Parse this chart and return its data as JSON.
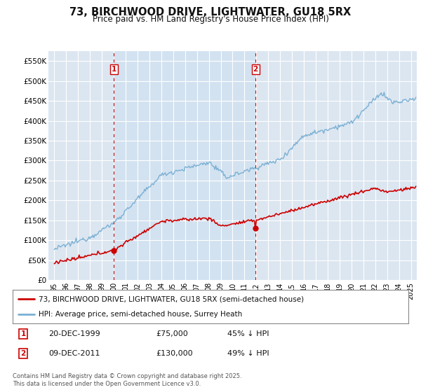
{
  "title": "73, BIRCHWOOD DRIVE, LIGHTWATER, GU18 5RX",
  "subtitle": "Price paid vs. HM Land Registry's House Price Index (HPI)",
  "background_color": "#ffffff",
  "plot_bg_color": "#dce6f1",
  "highlight_color": "#cdd9ea",
  "grid_color": "#ffffff",
  "hpi_color": "#7ab0d4",
  "price_color": "#cc0000",
  "vline_color": "#cc0000",
  "marker1_year": 2000.0,
  "marker1_price": 75000,
  "marker2_year": 2011.92,
  "marker2_price": 130000,
  "legend_label1": "73, BIRCHWOOD DRIVE, LIGHTWATER, GU18 5RX (semi-detached house)",
  "legend_label2": "HPI: Average price, semi-detached house, Surrey Heath",
  "annotation1_label": "1",
  "annotation1_date": "20-DEC-1999",
  "annotation1_price": "£75,000",
  "annotation1_pct": "45% ↓ HPI",
  "annotation2_label": "2",
  "annotation2_date": "09-DEC-2011",
  "annotation2_price": "£130,000",
  "annotation2_pct": "49% ↓ HPI",
  "footnote": "Contains HM Land Registry data © Crown copyright and database right 2025.\nThis data is licensed under the Open Government Licence v3.0.",
  "ylim": [
    0,
    575000
  ],
  "yticks": [
    0,
    50000,
    100000,
    150000,
    200000,
    250000,
    300000,
    350000,
    400000,
    450000,
    500000,
    550000
  ],
  "ytick_labels": [
    "£0",
    "£50K",
    "£100K",
    "£150K",
    "£200K",
    "£250K",
    "£300K",
    "£350K",
    "£400K",
    "£450K",
    "£500K",
    "£550K"
  ],
  "xlim_start": 1994.5,
  "xlim_end": 2025.5
}
